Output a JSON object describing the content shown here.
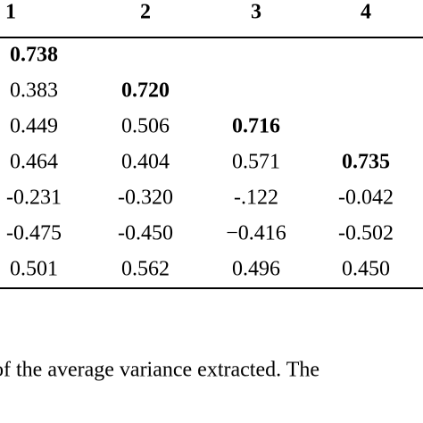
{
  "table": {
    "header": [
      "1",
      "2",
      "3",
      "4"
    ],
    "rows": [
      {
        "cells": [
          "0.738"
        ],
        "bold": 0
      },
      {
        "cells": [
          "0.383",
          "0.720"
        ],
        "bold": 1
      },
      {
        "cells": [
          "0.449",
          "0.506",
          "0.716"
        ],
        "bold": 2
      },
      {
        "cells": [
          "0.464",
          "0.404",
          "0.571",
          "0.735"
        ],
        "bold": 3
      },
      {
        "cells": [
          "-0.231",
          "-0.320",
          "-.122",
          "-0.042"
        ]
      },
      {
        "cells": [
          "-0.475",
          "-0.450",
          "−0.416",
          "-0.502"
        ]
      },
      {
        "cells": [
          "0.501",
          "0.562",
          "0.496",
          "0.450"
        ]
      }
    ]
  },
  "footnote": "of the average variance extracted. The"
}
